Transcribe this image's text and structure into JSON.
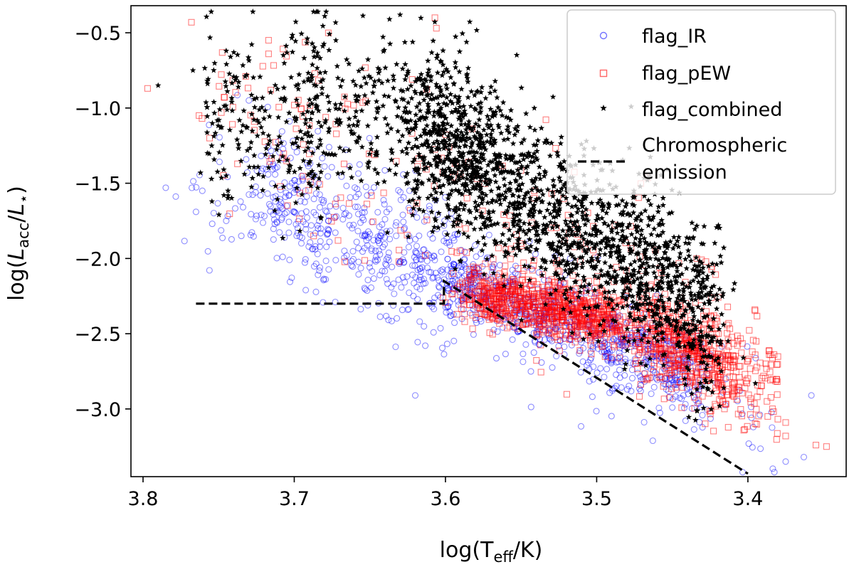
{
  "chart_data": {
    "type": "scatter",
    "title": "",
    "xlabel": "log(T_eff/K)",
    "xlabel_parts": {
      "pre": "log(T",
      "sub": "eff",
      "post": "/K)"
    },
    "ylabel": "log(L_acc/L_⋆)",
    "ylabel_parts": {
      "pre": "log(",
      "L1": "L",
      "sub": "acc",
      "slash": "/",
      "L2": "L",
      "star": "⋆",
      "post": ")"
    },
    "xlim": [
      3.808,
      3.335
    ],
    "ylim": [
      -3.45,
      -0.32
    ],
    "x_inverted": true,
    "xticks": [
      3.8,
      3.7,
      3.6,
      3.5,
      3.4
    ],
    "xtick_labels": [
      "3.8",
      "3.7",
      "3.6",
      "3.5",
      "3.4"
    ],
    "yticks": [
      -0.5,
      -1.0,
      -1.5,
      -2.0,
      -2.5,
      -3.0
    ],
    "ytick_labels": [
      "−0.5",
      "−1.0",
      "−1.5",
      "−2.0",
      "−2.5",
      "−3.0"
    ],
    "grid": false,
    "legend_position": "top-right",
    "series": [
      {
        "name": "flag_IR",
        "marker": "open-circle",
        "color": "#0000ff",
        "alpha": 0.45,
        "count": 1300,
        "distribution": "dense band from (3.60,-2.10) to (3.43,-2.85), sparse tail toward 3.78 at -1.5",
        "outliers": [
          {
            "x": 3.785,
            "y": -1.53
          },
          {
            "x": 3.765,
            "y": -1.69
          },
          {
            "x": 3.62,
            "y": -2.91
          },
          {
            "x": 3.358,
            "y": -2.91
          },
          {
            "x": 3.363,
            "y": -3.32
          },
          {
            "x": 3.375,
            "y": -3.35
          },
          {
            "x": 3.73,
            "y": -0.95
          },
          {
            "x": 3.745,
            "y": -1.75
          },
          {
            "x": 3.735,
            "y": -1.85
          }
        ]
      },
      {
        "name": "flag_pEW",
        "marker": "open-square",
        "color": "#ff0000",
        "alpha": 0.5,
        "count": 1700,
        "distribution": "dense red cluster centered near (3.55,-2.30) extending to (3.43,-2.70); sparse squares up to -0.5",
        "outliers": [
          {
            "x": 3.797,
            "y": -0.87
          },
          {
            "x": 3.768,
            "y": -0.43
          },
          {
            "x": 3.763,
            "y": -1.05
          },
          {
            "x": 3.761,
            "y": -1.07
          },
          {
            "x": 3.756,
            "y": -1.2
          },
          {
            "x": 3.717,
            "y": -0.55
          },
          {
            "x": 3.717,
            "y": -0.64
          },
          {
            "x": 3.607,
            "y": -0.4
          },
          {
            "x": 3.606,
            "y": -0.47
          },
          {
            "x": 3.355,
            "y": -3.24
          },
          {
            "x": 3.348,
            "y": -3.25
          },
          {
            "x": 3.375,
            "y": -3.09
          },
          {
            "x": 3.375,
            "y": -3.18
          },
          {
            "x": 3.385,
            "y": -2.64
          },
          {
            "x": 3.388,
            "y": -2.7
          }
        ]
      },
      {
        "name": "flag_combined",
        "marker": "star",
        "color": "#000000",
        "alpha": 1.0,
        "count": 2300,
        "distribution": "broad black cloud from (3.72,-0.9) to (3.42,-2.6), densest near (3.53,-1.6)",
        "outliers": [
          {
            "x": 3.79,
            "y": -0.85
          },
          {
            "x": 3.767,
            "y": -0.75
          },
          {
            "x": 3.762,
            "y": -1.43
          },
          {
            "x": 3.745,
            "y": -0.62
          },
          {
            "x": 3.74,
            "y": -0.63
          },
          {
            "x": 3.737,
            "y": -0.86
          },
          {
            "x": 3.745,
            "y": -1.45
          },
          {
            "x": 3.637,
            "y": -0.41
          },
          {
            "x": 3.63,
            "y": -0.38
          },
          {
            "x": 3.418,
            "y": -2.55
          },
          {
            "x": 3.403,
            "y": -2.66
          },
          {
            "x": 3.395,
            "y": -2.83
          },
          {
            "x": 3.416,
            "y": -2.86
          },
          {
            "x": 3.431,
            "y": -2.69
          }
        ]
      }
    ],
    "reference_line": {
      "name": "Chromospheric emission",
      "legend_lines": [
        "Chromospheric",
        "emission"
      ],
      "style": "dashed",
      "color": "#000000",
      "points": [
        [
          3.765,
          -2.3
        ],
        [
          3.601,
          -2.3
        ],
        [
          3.601,
          -2.15
        ],
        [
          3.4,
          -3.43
        ]
      ]
    },
    "legend": [
      "flag_IR",
      "flag_pEW",
      "flag_combined",
      "Chromospheric emission"
    ]
  }
}
